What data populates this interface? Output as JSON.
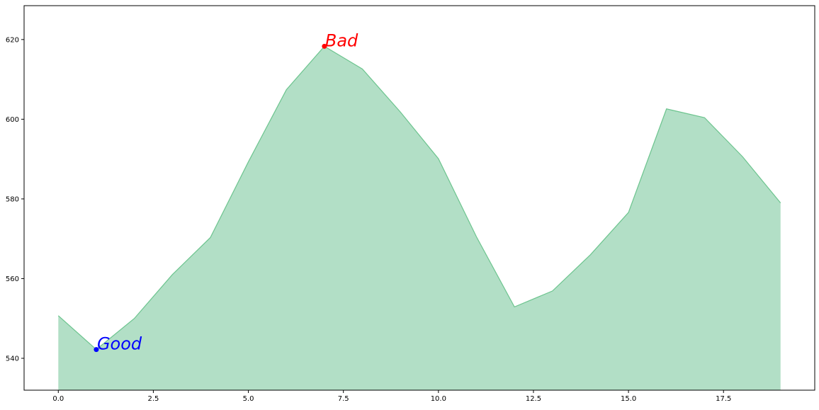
{
  "chart_data": {
    "type": "area",
    "title": "",
    "xlabel": "",
    "ylabel": "",
    "x": [
      0,
      1,
      2,
      3,
      4,
      5,
      6,
      7,
      8,
      9,
      10,
      11,
      12,
      13,
      14,
      15,
      16,
      17,
      18,
      19
    ],
    "series": [
      {
        "values": [
          550.7,
          542.2,
          550.0,
          561.0,
          570.3,
          589.3,
          607.4,
          618.3,
          612.6,
          601.8,
          590.1,
          570.5,
          552.9,
          556.9,
          566.0,
          576.6,
          602.6,
          600.4,
          590.6,
          579.0
        ],
        "fill_color": "#b2dfc6",
        "line_color": "#6cc48e"
      }
    ],
    "xlim": [
      -0.9,
      19.9
    ],
    "ylim": [
      532,
      628.5
    ],
    "xticks": [
      0.0,
      2.5,
      5.0,
      7.5,
      10.0,
      12.5,
      15.0,
      17.5
    ],
    "xtick_labels": [
      "0.0",
      "2.5",
      "5.0",
      "7.5",
      "10.0",
      "12.5",
      "15.0",
      "17.5"
    ],
    "yticks": [
      540,
      560,
      580,
      600,
      620
    ],
    "ytick_labels": [
      "540",
      "560",
      "580",
      "600",
      "620"
    ],
    "grid": false,
    "legend": "none",
    "annotations": [
      {
        "label": "Good",
        "x": 1,
        "y": 542.2,
        "color": "#0000ff"
      },
      {
        "label": "Bad",
        "x": 7,
        "y": 618.3,
        "color": "#ff0000"
      }
    ]
  }
}
